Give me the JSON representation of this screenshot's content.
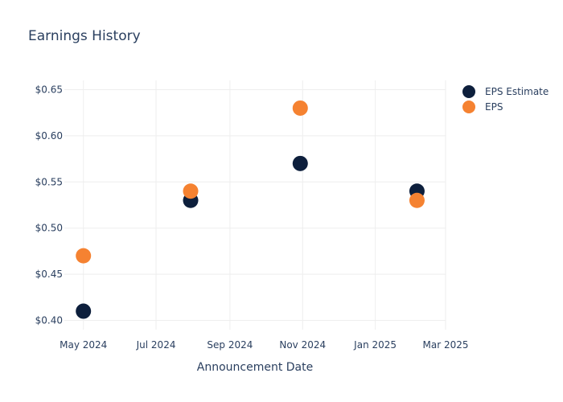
{
  "chart_data": {
    "type": "scatter",
    "title": "Earnings History",
    "xlabel": "Announcement Date",
    "ylabel": "",
    "x_ticks": [
      "2024-05-01",
      "2024-07-01",
      "2024-09-01",
      "2024-11-01",
      "2025-01-01",
      "2025-03-01"
    ],
    "x_tick_labels": [
      "May 2024",
      "Jul 2024",
      "Sep 2024",
      "Nov 2024",
      "Jan 2025",
      "Mar 2025"
    ],
    "xlim": [
      "2024-04-15",
      "2025-03-01"
    ],
    "y_ticks": [
      0.4,
      0.45,
      0.5,
      0.55,
      0.6,
      0.65
    ],
    "y_tick_labels": [
      "$0.40",
      "$0.45",
      "$0.50",
      "$0.55",
      "$0.60",
      "$0.65"
    ],
    "ylim": [
      0.39,
      0.66
    ],
    "grid": true,
    "legend_position": "top-right",
    "x": [
      "2024-05-01",
      "2024-07-30",
      "2024-10-30",
      "2025-02-05"
    ],
    "series": [
      {
        "name": "EPS Estimate",
        "color": "#0d1f3c",
        "values": [
          0.41,
          0.53,
          0.57,
          0.54
        ]
      },
      {
        "name": "EPS",
        "color": "#f58231",
        "values": [
          0.47,
          0.54,
          0.63,
          0.53
        ]
      }
    ]
  }
}
